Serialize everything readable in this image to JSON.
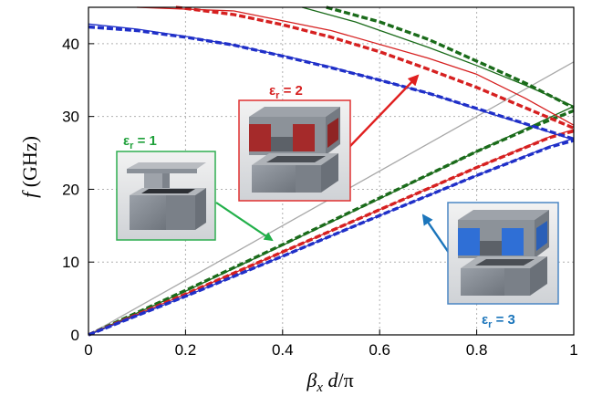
{
  "chart_data": {
    "type": "line",
    "xlabel": "β_x d/π",
    "ylabel": "f (GHz)",
    "xlim": [
      0,
      1
    ],
    "ylim": [
      0,
      45
    ],
    "xticks": [
      "0",
      "0.2",
      "0.4",
      "0.6",
      "0.8",
      "1"
    ],
    "yticks": [
      "0",
      "10",
      "20",
      "30",
      "40"
    ],
    "grid": true,
    "colors": {
      "eps1": "#1a6b1a",
      "eps2": "#d62020",
      "eps3": "#1f2fc8",
      "light_line": "#a8a8a8"
    },
    "annotations": [
      {
        "id": "eps1",
        "label": "ε",
        "sub": "r",
        "rest": " = 1",
        "color": "#1fa03a"
      },
      {
        "id": "eps2",
        "label": "ε",
        "sub": "r",
        "rest": " = 2",
        "color": "#d62020"
      },
      {
        "id": "eps3",
        "label": "ε",
        "sub": "r",
        "rest": " = 3",
        "color": "#1b75bb"
      }
    ],
    "series": [
      {
        "key": "light",
        "style": "thin",
        "color": "#a8a8a8",
        "points": [
          [
            0,
            0
          ],
          [
            1,
            37.5
          ]
        ]
      },
      {
        "key": "g1t",
        "style": "thin",
        "color": "#1a6b1a",
        "points": [
          [
            0,
            0
          ],
          [
            0.2,
            6.0
          ],
          [
            0.4,
            12.3
          ],
          [
            0.6,
            18.7
          ],
          [
            0.8,
            25.2
          ],
          [
            1,
            31.4
          ]
        ]
      },
      {
        "key": "g1d",
        "style": "dash",
        "color": "#1a6b1a",
        "points": [
          [
            0,
            0
          ],
          [
            0.2,
            6.1
          ],
          [
            0.4,
            12.4
          ],
          [
            0.6,
            18.8
          ],
          [
            0.8,
            25.2
          ],
          [
            0.92,
            28.7
          ],
          [
            1,
            30.8
          ]
        ]
      },
      {
        "key": "r1t",
        "style": "thin",
        "color": "#d62020",
        "points": [
          [
            0,
            0
          ],
          [
            0.2,
            5.6
          ],
          [
            0.4,
            11.4
          ],
          [
            0.6,
            17.2
          ],
          [
            0.8,
            23.0
          ],
          [
            0.95,
            27.2
          ],
          [
            1,
            28.2
          ]
        ]
      },
      {
        "key": "r1d",
        "style": "dash",
        "color": "#d62020",
        "points": [
          [
            0,
            0
          ],
          [
            0.2,
            5.6
          ],
          [
            0.4,
            11.4
          ],
          [
            0.6,
            17.2
          ],
          [
            0.8,
            23.0
          ],
          [
            0.95,
            27.1
          ],
          [
            1,
            28.0
          ]
        ]
      },
      {
        "key": "b1t",
        "style": "thin",
        "color": "#1f2fc8",
        "points": [
          [
            0,
            0
          ],
          [
            0.2,
            5.3
          ],
          [
            0.4,
            10.8
          ],
          [
            0.6,
            16.4
          ],
          [
            0.8,
            21.9
          ],
          [
            0.95,
            25.9
          ],
          [
            1,
            27.0
          ]
        ]
      },
      {
        "key": "b1d",
        "style": "dash",
        "color": "#1f2fc8",
        "points": [
          [
            0,
            0
          ],
          [
            0.2,
            5.3
          ],
          [
            0.4,
            10.8
          ],
          [
            0.6,
            16.4
          ],
          [
            0.8,
            21.9
          ],
          [
            0.95,
            25.8
          ],
          [
            1,
            26.7
          ]
        ]
      },
      {
        "key": "b2t",
        "style": "thin",
        "color": "#1f2fc8",
        "points": [
          [
            0,
            42.7
          ],
          [
            0.1,
            42.0
          ],
          [
            0.2,
            41.0
          ],
          [
            0.3,
            39.8
          ],
          [
            0.4,
            38.4
          ],
          [
            0.5,
            36.8
          ],
          [
            0.6,
            35.0
          ],
          [
            0.7,
            33.2
          ],
          [
            0.8,
            31.0
          ],
          [
            0.9,
            28.9
          ],
          [
            1,
            26.8
          ]
        ]
      },
      {
        "key": "b2d",
        "style": "dash",
        "color": "#1f2fc8",
        "points": [
          [
            0,
            42.3
          ],
          [
            0.1,
            41.8
          ],
          [
            0.2,
            40.9
          ],
          [
            0.3,
            39.8
          ],
          [
            0.4,
            38.3
          ],
          [
            0.5,
            36.7
          ],
          [
            0.6,
            35.0
          ],
          [
            0.7,
            33.2
          ],
          [
            0.8,
            31.1
          ],
          [
            0.9,
            29.0
          ],
          [
            1,
            26.9
          ]
        ]
      },
      {
        "key": "r2t",
        "style": "thin",
        "color": "#d62020",
        "points": [
          [
            0.1,
            45.0
          ],
          [
            0.3,
            44.5
          ],
          [
            0.5,
            41.8
          ],
          [
            0.7,
            38.0
          ],
          [
            0.8,
            35.8
          ],
          [
            0.9,
            32.5
          ],
          [
            1,
            28.8
          ]
        ]
      },
      {
        "key": "r2d",
        "style": "dash",
        "color": "#d62020",
        "points": [
          [
            0.18,
            45.0
          ],
          [
            0.3,
            44.0
          ],
          [
            0.4,
            42.6
          ],
          [
            0.5,
            40.9
          ],
          [
            0.6,
            38.9
          ],
          [
            0.7,
            36.5
          ],
          [
            0.8,
            34.0
          ],
          [
            0.9,
            31.2
          ],
          [
            1,
            28.4
          ]
        ]
      },
      {
        "key": "g2t",
        "style": "thin",
        "color": "#1a6b1a",
        "points": [
          [
            0.44,
            45.0
          ],
          [
            0.55,
            43.0
          ],
          [
            0.7,
            39.5
          ],
          [
            0.8,
            37.0
          ],
          [
            0.9,
            34.3
          ],
          [
            1,
            31.4
          ]
        ]
      },
      {
        "key": "g2d",
        "style": "dash",
        "color": "#1a6b1a",
        "points": [
          [
            0.49,
            45.0
          ],
          [
            0.6,
            43.0
          ],
          [
            0.7,
            40.6
          ],
          [
            0.8,
            37.6
          ],
          [
            0.9,
            34.6
          ],
          [
            1,
            31.2
          ]
        ]
      }
    ]
  }
}
